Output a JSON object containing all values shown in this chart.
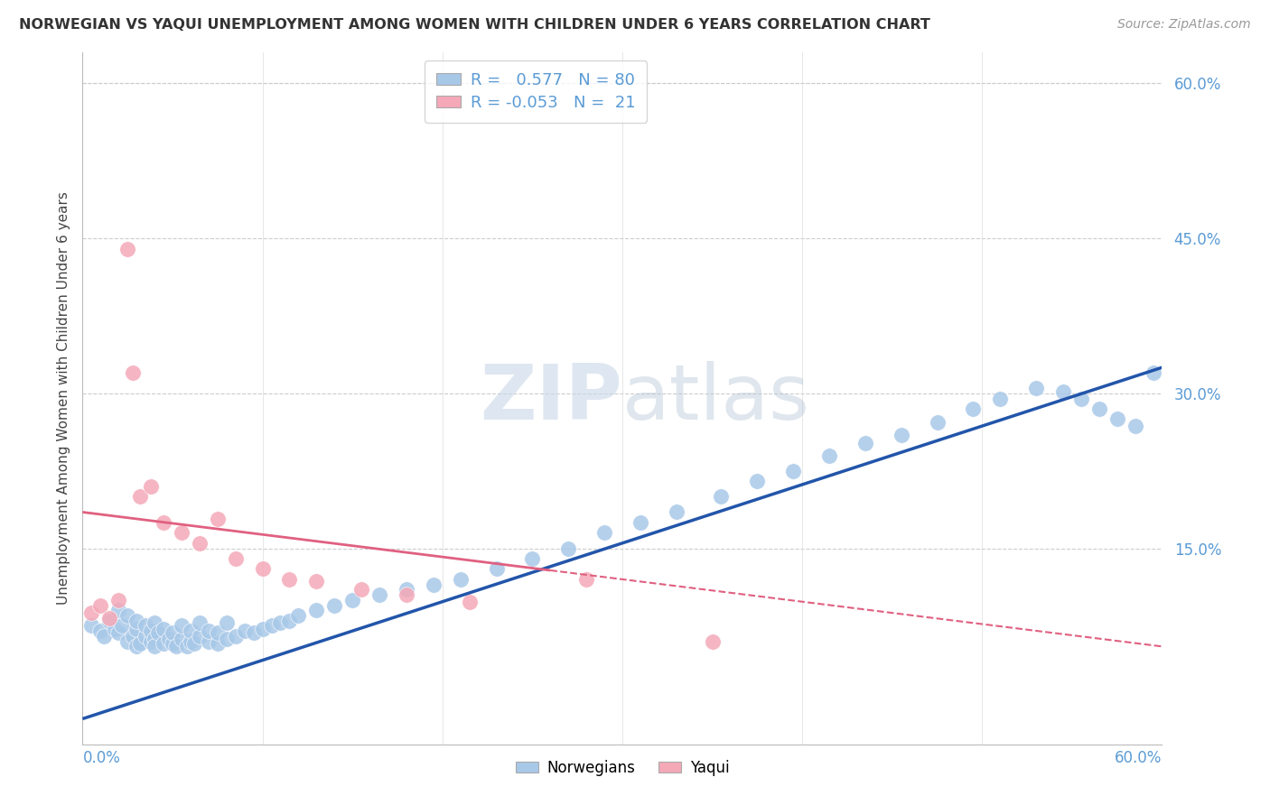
{
  "title": "NORWEGIAN VS YAQUI UNEMPLOYMENT AMONG WOMEN WITH CHILDREN UNDER 6 YEARS CORRELATION CHART",
  "source": "Source: ZipAtlas.com",
  "ylabel": "Unemployment Among Women with Children Under 6 years",
  "right_yticks": [
    0.15,
    0.3,
    0.45,
    0.6
  ],
  "right_yticklabels": [
    "15.0%",
    "30.0%",
    "45.0%",
    "60.0%"
  ],
  "xlim": [
    0.0,
    0.6
  ],
  "ylim": [
    -0.04,
    0.63
  ],
  "norwegian_R": 0.577,
  "norwegian_N": 80,
  "yaqui_R": -0.053,
  "yaqui_N": 21,
  "norwegian_color": "#A8C8E8",
  "yaqui_color": "#F4A8B8",
  "trend_norwegian_color": "#2255AA",
  "trend_yaqui_color": "#E06080",
  "background_color": "#FFFFFF",
  "grid_color": "#CCCCCC",
  "watermark_color": "#E0E8F0",
  "norwegian_x": [
    0.005,
    0.01,
    0.012,
    0.015,
    0.018,
    0.02,
    0.02,
    0.022,
    0.025,
    0.025,
    0.028,
    0.03,
    0.03,
    0.03,
    0.032,
    0.035,
    0.035,
    0.038,
    0.038,
    0.04,
    0.04,
    0.04,
    0.042,
    0.045,
    0.045,
    0.048,
    0.05,
    0.05,
    0.052,
    0.055,
    0.055,
    0.058,
    0.06,
    0.06,
    0.062,
    0.065,
    0.065,
    0.07,
    0.07,
    0.075,
    0.075,
    0.08,
    0.08,
    0.085,
    0.09,
    0.095,
    0.1,
    0.105,
    0.11,
    0.115,
    0.12,
    0.13,
    0.14,
    0.15,
    0.165,
    0.18,
    0.195,
    0.21,
    0.23,
    0.25,
    0.27,
    0.29,
    0.31,
    0.33,
    0.355,
    0.375,
    0.395,
    0.415,
    0.435,
    0.455,
    0.475,
    0.495,
    0.51,
    0.53,
    0.545,
    0.555,
    0.565,
    0.575,
    0.585,
    0.595
  ],
  "norwegian_y": [
    0.075,
    0.07,
    0.065,
    0.08,
    0.072,
    0.068,
    0.09,
    0.075,
    0.06,
    0.085,
    0.065,
    0.055,
    0.072,
    0.08,
    0.058,
    0.065,
    0.075,
    0.06,
    0.07,
    0.062,
    0.055,
    0.078,
    0.068,
    0.058,
    0.072,
    0.062,
    0.058,
    0.068,
    0.055,
    0.062,
    0.075,
    0.055,
    0.06,
    0.07,
    0.058,
    0.065,
    0.078,
    0.06,
    0.07,
    0.058,
    0.068,
    0.062,
    0.078,
    0.065,
    0.07,
    0.068,
    0.072,
    0.075,
    0.078,
    0.08,
    0.085,
    0.09,
    0.095,
    0.1,
    0.105,
    0.11,
    0.115,
    0.12,
    0.13,
    0.14,
    0.15,
    0.165,
    0.175,
    0.185,
    0.2,
    0.215,
    0.225,
    0.24,
    0.252,
    0.26,
    0.272,
    0.285,
    0.295,
    0.305,
    0.302,
    0.295,
    0.285,
    0.275,
    0.268,
    0.32
  ],
  "yaqui_x": [
    0.005,
    0.01,
    0.015,
    0.02,
    0.025,
    0.028,
    0.032,
    0.038,
    0.045,
    0.055,
    0.065,
    0.075,
    0.085,
    0.1,
    0.115,
    0.13,
    0.155,
    0.18,
    0.215,
    0.28,
    0.35
  ],
  "yaqui_y": [
    0.088,
    0.095,
    0.082,
    0.1,
    0.44,
    0.32,
    0.2,
    0.21,
    0.175,
    0.165,
    0.155,
    0.178,
    0.14,
    0.13,
    0.12,
    0.118,
    0.11,
    0.105,
    0.098,
    0.12,
    0.06
  ],
  "nor_trend_x0": 0.0,
  "nor_trend_y0": -0.015,
  "nor_trend_x1": 0.6,
  "nor_trend_y1": 0.325,
  "yaq_trend_x0": 0.0,
  "yaq_trend_y0": 0.185,
  "yaq_trend_x1": 0.6,
  "yaq_trend_y1": 0.055
}
